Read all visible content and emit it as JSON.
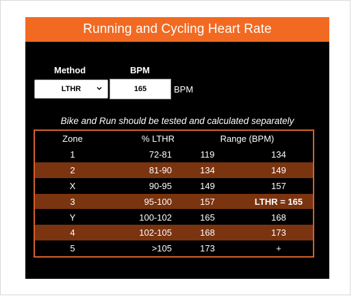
{
  "title": "Running and Cycling Heart Rate",
  "form": {
    "method_label": "Method",
    "bpm_label": "BPM",
    "method_value": "LTHR",
    "bpm_value": "165",
    "bpm_unit": "BPM"
  },
  "note": "Bike and Run should be tested and calculated separately",
  "table": {
    "headers": {
      "zone": "Zone",
      "pct": "% LTHR",
      "range": "Range (BPM)"
    },
    "rows": [
      {
        "zone": "1",
        "pct": "72-81",
        "low": "119",
        "high": "134"
      },
      {
        "zone": "2",
        "pct": "81-90",
        "low": "134",
        "high": "149"
      },
      {
        "zone": "X",
        "pct": "90-95",
        "low": "149",
        "high": "157"
      },
      {
        "zone": "3",
        "pct": "95-100",
        "low": "157",
        "high": "LTHR = 165"
      },
      {
        "zone": "Y",
        "pct": "100-102",
        "low": "165",
        "high": "168"
      },
      {
        "zone": "4",
        "pct": "102-105",
        "low": "168",
        "high": "173"
      },
      {
        "zone": "5",
        "pct": ">105",
        "low": "173",
        "high": "+"
      }
    ]
  },
  "colors": {
    "banner": "#f26a21",
    "panel": "#000000",
    "row_alt": "#7a3410",
    "table_border": "#d8612a"
  }
}
